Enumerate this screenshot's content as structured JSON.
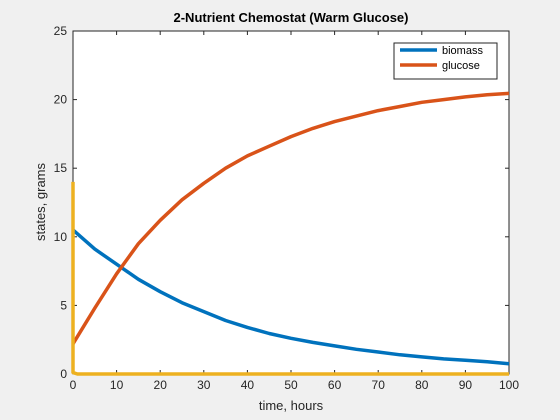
{
  "chart_data": {
    "type": "line",
    "title": "2-Nutrient Chemostat (Warm Glucose)",
    "xlabel": "time, hours",
    "ylabel": "states, grams",
    "xlim": [
      0,
      100
    ],
    "ylim": [
      0,
      25
    ],
    "xticks": [
      0,
      10,
      20,
      30,
      40,
      50,
      60,
      70,
      80,
      90,
      100
    ],
    "yticks": [
      0,
      5,
      10,
      15,
      20,
      25
    ],
    "grid": false,
    "legend_position": "top-right",
    "series": [
      {
        "name": "biomass",
        "color": "#0072bd",
        "x": [
          0,
          5,
          10,
          15,
          20,
          25,
          30,
          35,
          40,
          45,
          50,
          55,
          60,
          65,
          70,
          75,
          80,
          85,
          90,
          95,
          100
        ],
        "y": [
          10.5,
          9.1,
          8.0,
          6.9,
          6.0,
          5.2,
          4.55,
          3.9,
          3.4,
          2.95,
          2.6,
          2.3,
          2.05,
          1.8,
          1.6,
          1.4,
          1.25,
          1.1,
          1.0,
          0.9,
          0.75
        ]
      },
      {
        "name": "glucose",
        "color": "#d95319",
        "x": [
          0,
          5,
          10,
          15,
          20,
          25,
          30,
          35,
          40,
          45,
          50,
          55,
          60,
          65,
          70,
          75,
          80,
          85,
          90,
          95,
          100
        ],
        "y": [
          2.2,
          4.8,
          7.3,
          9.5,
          11.2,
          12.7,
          13.9,
          15.0,
          15.9,
          16.6,
          17.3,
          17.9,
          18.4,
          18.8,
          19.2,
          19.5,
          19.8,
          20.0,
          20.2,
          20.35,
          20.45
        ]
      },
      {
        "color": "#edb120",
        "x": [
          0,
          0,
          1,
          100
        ],
        "y": [
          14.0,
          0.1,
          0.0,
          0.0
        ]
      }
    ]
  }
}
